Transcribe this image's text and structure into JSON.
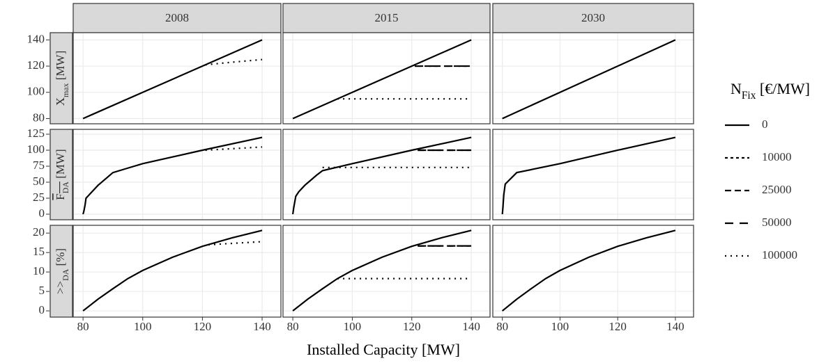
{
  "chart_data": {
    "type": "line",
    "x_label": "Installed Capacity [MW]",
    "xlim": [
      76.7,
      146.3
    ],
    "xticks": [
      80,
      100,
      120,
      140
    ],
    "grid": true,
    "columns": [
      "2008",
      "2015",
      "2030"
    ],
    "rows": [
      {
        "label": {
          "main": "X",
          "sub": "max",
          "unit": " [MW]"
        },
        "overline": false,
        "ylim": [
          76,
          145.5
        ],
        "yticks": [
          80,
          100,
          120,
          140
        ]
      },
      {
        "label": {
          "main": "F",
          "sub": "DA",
          "unit": " [MW]"
        },
        "overline": true,
        "ylim": [
          -8.7,
          132.6
        ],
        "yticks": [
          0,
          25,
          50,
          75,
          100,
          125
        ]
      },
      {
        "label": {
          "main": ">>",
          "sub": "DA",
          "unit": " [%]"
        },
        "overline": false,
        "ylim": [
          -1.6,
          22
        ],
        "yticks": [
          0,
          5,
          10,
          15,
          20
        ]
      }
    ],
    "legend": {
      "title": {
        "main": "N",
        "sub": "Fix",
        "unit": " [€/MW]"
      },
      "position": "right"
    },
    "series": [
      {
        "name": "0",
        "color": "#000000",
        "dash": "none"
      },
      {
        "name": "10000",
        "color": "#000000",
        "dash": "4 4"
      },
      {
        "name": "25000",
        "color": "#000000",
        "dash": "9 5"
      },
      {
        "name": "50000",
        "color": "#000000",
        "dash": "12 9"
      },
      {
        "name": "100000",
        "color": "#000000",
        "dash": "2 6"
      }
    ],
    "panels": [
      {
        "row": 0,
        "col": 0,
        "lines": [
          {
            "series": 0,
            "x": [
              80,
              140
            ],
            "y": [
              80,
              140
            ]
          },
          {
            "series": 4,
            "x": [
              121,
              130,
              140
            ],
            "y": [
              121,
              123,
              125
            ]
          }
        ]
      },
      {
        "row": 0,
        "col": 1,
        "lines": [
          {
            "series": 0,
            "x": [
              80,
              140
            ],
            "y": [
              80,
              140
            ]
          },
          {
            "series": 2,
            "x": [
              121,
              140
            ],
            "y": [
              120,
              120
            ]
          },
          {
            "series": 3,
            "x": [
              121,
              140
            ],
            "y": [
              120,
              120
            ]
          },
          {
            "series": 4,
            "x": [
              95,
              140
            ],
            "y": [
              95,
              95
            ]
          }
        ]
      },
      {
        "row": 0,
        "col": 2,
        "lines": [
          {
            "series": 0,
            "x": [
              80,
              140
            ],
            "y": [
              80,
              140
            ]
          }
        ]
      },
      {
        "row": 1,
        "col": 0,
        "lines": [
          {
            "series": 0,
            "x": [
              80,
              80.3,
              80.7,
              81,
              83,
              85,
              88,
              90,
              95,
              100,
              120,
              140
            ],
            "y": [
              0,
              5,
              15,
              25,
              35,
              45,
              57,
              65,
              72,
              79,
              100,
              120
            ]
          },
          {
            "series": 4,
            "x": [
              121,
              140
            ],
            "y": [
              100,
              105
            ]
          }
        ]
      },
      {
        "row": 1,
        "col": 1,
        "lines": [
          {
            "series": 0,
            "x": [
              80,
              80.3,
              81,
              82,
              84,
              86,
              88,
              90,
              100,
              120,
              140
            ],
            "y": [
              0,
              10,
              28,
              35,
              45,
              53,
              61,
              68,
              79,
              100,
              120
            ]
          },
          {
            "series": 2,
            "x": [
              122,
              140
            ],
            "y": [
              100,
              100
            ]
          },
          {
            "series": 3,
            "x": [
              122,
              140
            ],
            "y": [
              100,
              100
            ]
          },
          {
            "series": 4,
            "x": [
              90,
              140
            ],
            "y": [
              73,
              73
            ]
          }
        ]
      },
      {
        "row": 1,
        "col": 2,
        "lines": [
          {
            "series": 0,
            "x": [
              80,
              80.2,
              80.5,
              81,
              85,
              100,
              120,
              140
            ],
            "y": [
              0,
              10,
              30,
              47,
              65,
              79,
              100,
              120
            ]
          }
        ]
      },
      {
        "row": 2,
        "col": 0,
        "lines": [
          {
            "series": 0,
            "x": [
              80,
              85,
              90,
              95,
              100,
              110,
              120,
              130,
              140
            ],
            "y": [
              0,
              3,
              5.7,
              8.3,
              10.4,
              13.8,
              16.6,
              18.8,
              20.7
            ]
          },
          {
            "series": 4,
            "x": [
              122,
              140
            ],
            "y": [
              17,
              17.8
            ]
          }
        ]
      },
      {
        "row": 2,
        "col": 1,
        "lines": [
          {
            "series": 0,
            "x": [
              80,
              85,
              90,
              95,
              100,
              110,
              120,
              130,
              140
            ],
            "y": [
              0,
              3,
              5.7,
              8.3,
              10.4,
              13.8,
              16.6,
              18.8,
              20.7
            ]
          },
          {
            "series": 2,
            "x": [
              122,
              140
            ],
            "y": [
              16.7,
              16.7
            ]
          },
          {
            "series": 3,
            "x": [
              122,
              140
            ],
            "y": [
              16.7,
              16.7
            ]
          },
          {
            "series": 4,
            "x": [
              95,
              140
            ],
            "y": [
              8.3,
              8.3
            ]
          }
        ]
      },
      {
        "row": 2,
        "col": 2,
        "lines": [
          {
            "series": 0,
            "x": [
              80,
              85,
              90,
              95,
              100,
              110,
              120,
              130,
              140
            ],
            "y": [
              0,
              3,
              5.7,
              8.3,
              10.4,
              13.8,
              16.6,
              18.8,
              20.7
            ]
          }
        ]
      }
    ]
  }
}
